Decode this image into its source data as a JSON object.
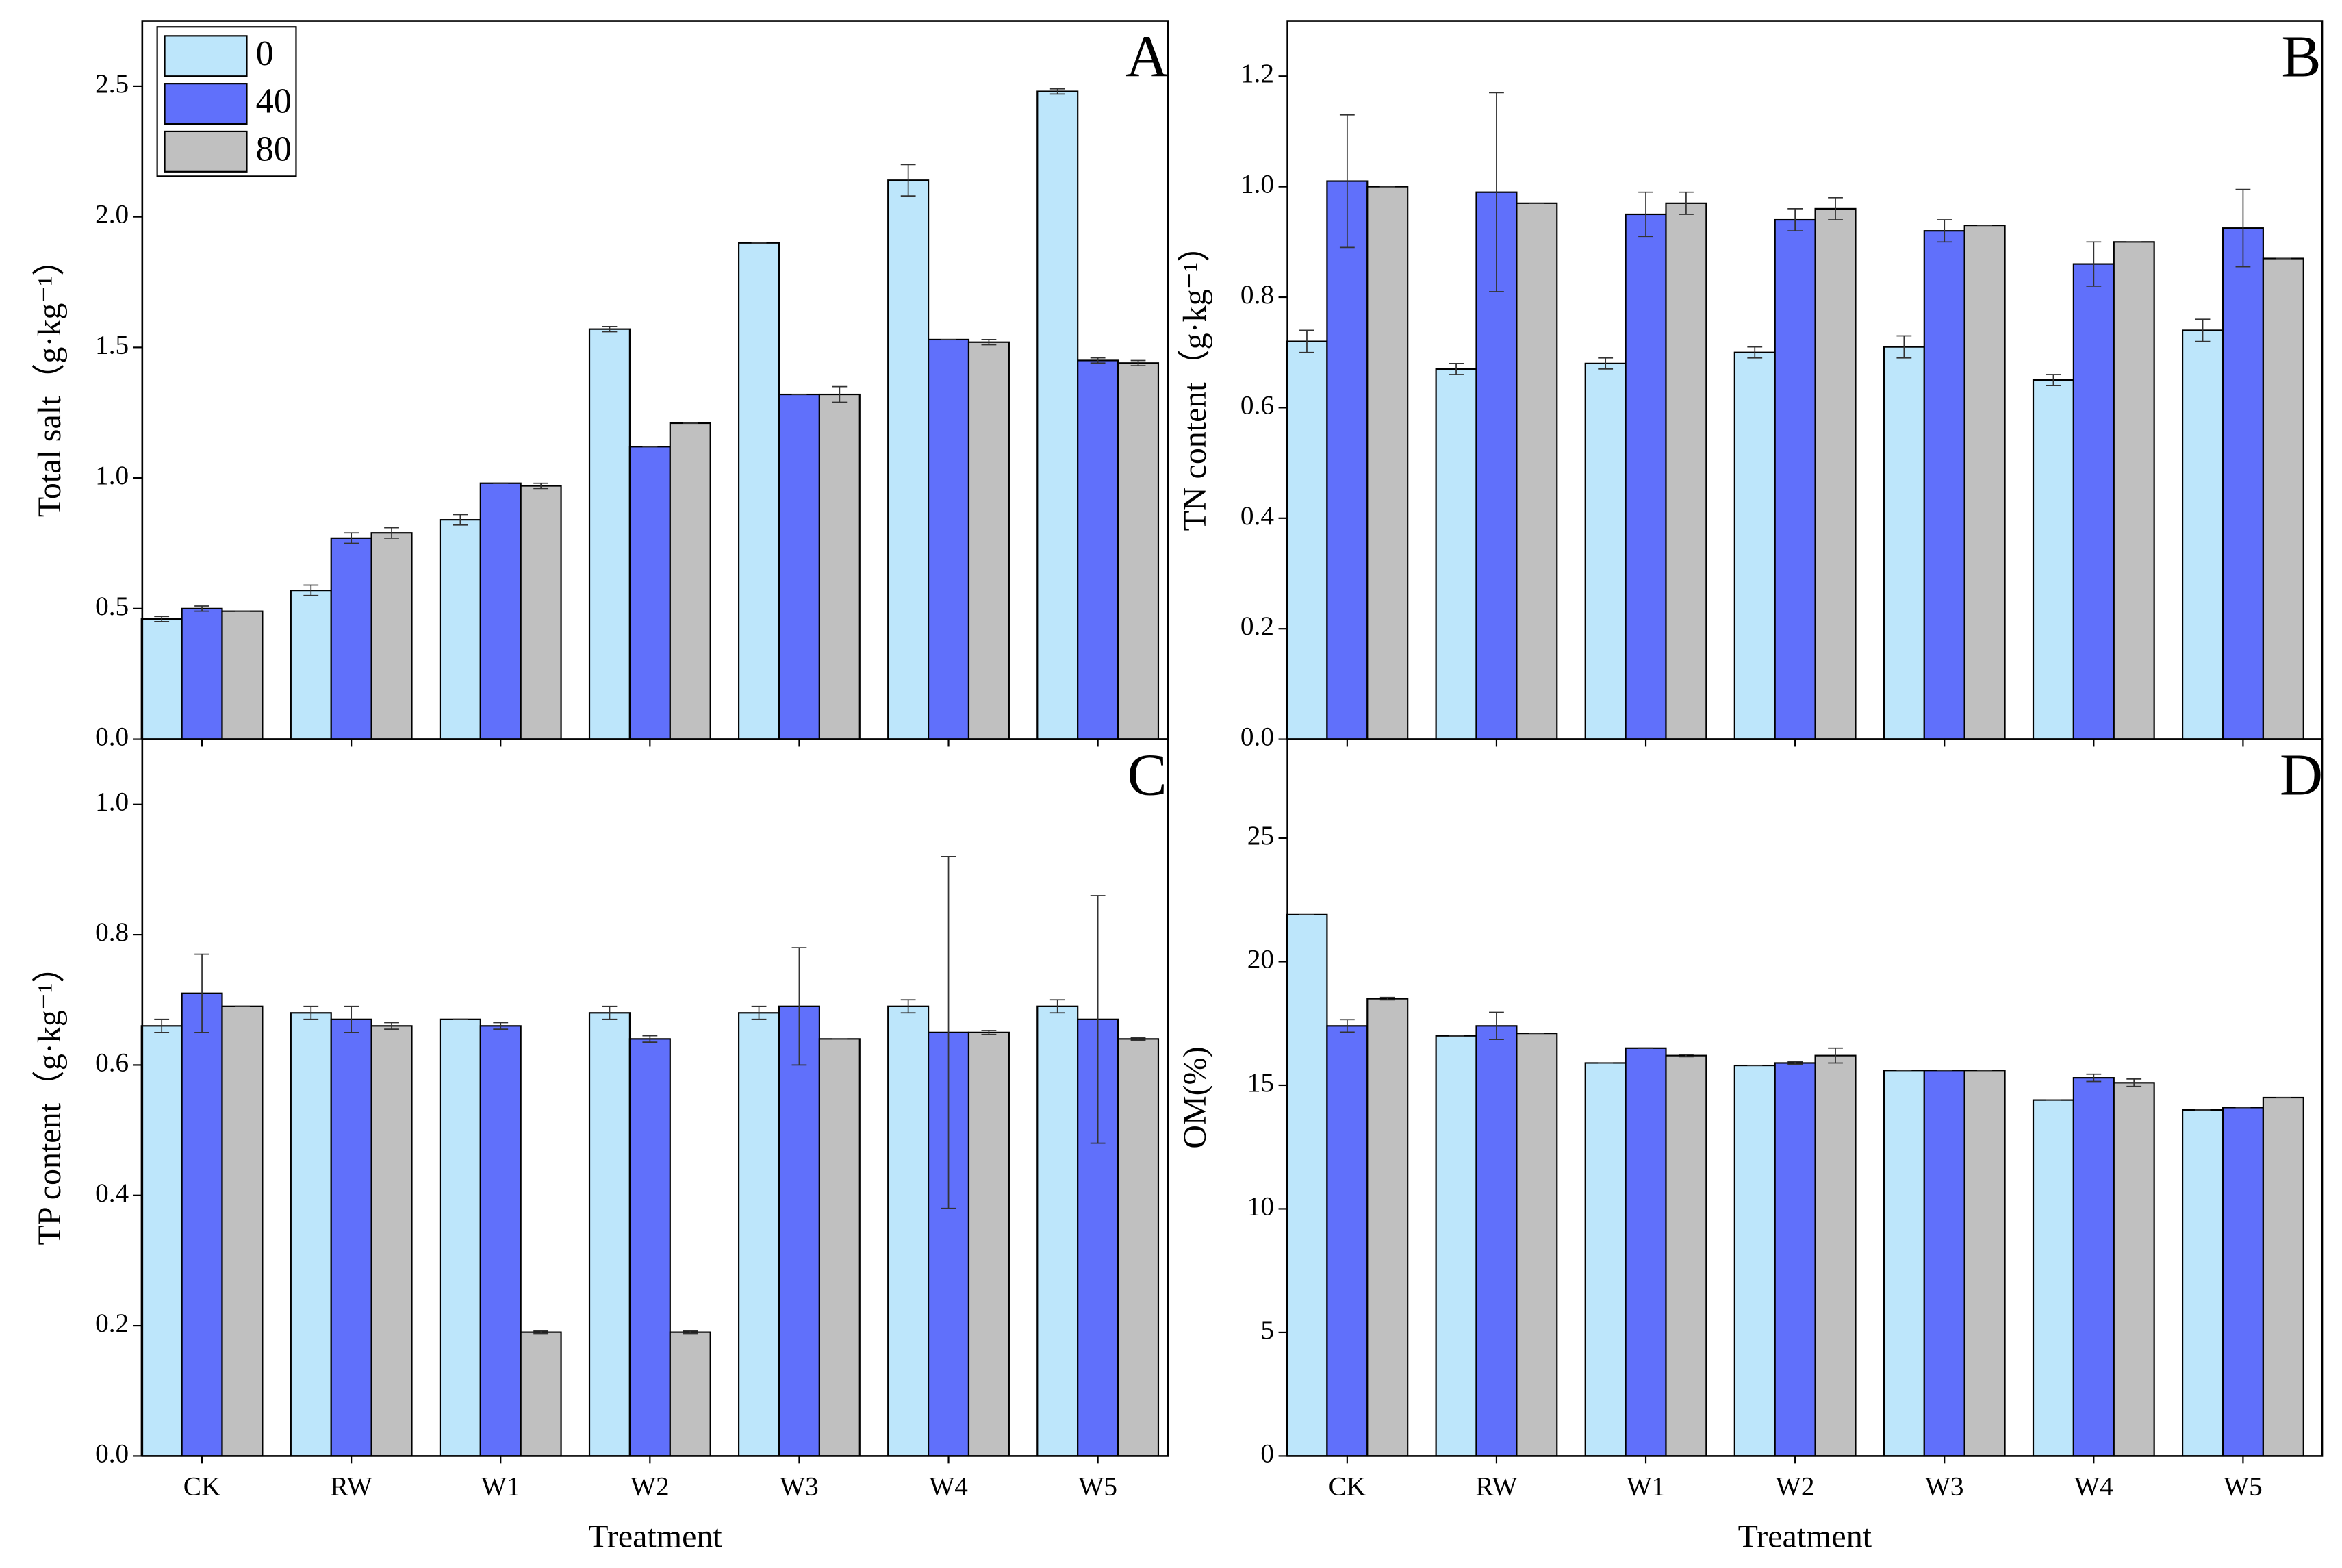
{
  "chart_data": [
    {
      "type": "bar",
      "panel_label": "A",
      "ylabel": "Total salt（g·kg⁻¹）",
      "categories": [
        null,
        null,
        null,
        null,
        null,
        null,
        null
      ],
      "series": [
        {
          "name": "0",
          "color": "#bde6fb",
          "values": [
            0.46,
            0.57,
            0.84,
            1.57,
            1.9,
            2.14,
            2.48
          ],
          "errors": [
            0.01,
            0.02,
            0.02,
            0.01,
            0,
            0.06,
            0.01
          ]
        },
        {
          "name": "40",
          "color": "#6070fb",
          "values": [
            0.5,
            0.77,
            0.98,
            1.12,
            1.32,
            1.53,
            1.45
          ],
          "errors": [
            0.01,
            0.02,
            0,
            0,
            0,
            0,
            0.01
          ]
        },
        {
          "name": "80",
          "color": "#c0c0c0",
          "values": [
            0.49,
            0.79,
            0.97,
            1.21,
            1.32,
            1.52,
            1.44
          ],
          "errors": [
            0,
            0.02,
            0.01,
            0,
            0.03,
            0.01,
            0.01
          ]
        }
      ],
      "ylim": [
        0,
        2.75
      ],
      "yticks": [
        {
          "value": 0,
          "label": "0.0"
        },
        0.5,
        {
          "value": 1,
          "label": "1.0"
        },
        1.5,
        {
          "value": 2,
          "label": "2.0"
        },
        2.5
      ],
      "legend": "upper left"
    },
    {
      "type": "bar",
      "panel_label": "B",
      "ylabel": "TN content（g·kg⁻¹）",
      "categories": [
        null,
        null,
        null,
        null,
        null,
        null,
        null
      ],
      "series": [
        {
          "color": "#bde6fb",
          "values": [
            0.72,
            0.67,
            0.68,
            0.7,
            0.71,
            0.65,
            0.74
          ],
          "errors": [
            0.02,
            0.01,
            0.01,
            0.01,
            0.02,
            0.01,
            0.02
          ]
        },
        {
          "color": "#6070fb",
          "values": [
            1.01,
            0.99,
            0.95,
            0.94,
            0.92,
            0.86,
            0.925
          ],
          "errors": [
            0.12,
            0.18,
            0.04,
            0.02,
            0.02,
            0.04,
            0.07
          ]
        },
        {
          "color": "#c0c0c0",
          "values": [
            1.0,
            0.97,
            0.97,
            0.96,
            0.93,
            0.9,
            0.87
          ],
          "errors": [
            0,
            0,
            0.02,
            0.02,
            0,
            0,
            0
          ]
        }
      ],
      "ylim": [
        0,
        1.3
      ],
      "yticks": [
        {
          "value": 0,
          "label": "0.0"
        },
        0.2,
        0.4,
        0.6,
        0.8,
        {
          "value": 1,
          "label": "1.0"
        },
        1.2
      ]
    },
    {
      "type": "bar",
      "panel_label": "C",
      "ylabel": "TP content（g·kg⁻¹）",
      "xlabel": "Treatment",
      "categories": [
        "CK",
        "RW",
        "W1",
        "W2",
        "W3",
        "W4",
        "W5"
      ],
      "series": [
        {
          "color": "#bde6fb",
          "values": [
            0.66,
            0.68,
            0.67,
            0.68,
            0.68,
            0.69,
            0.69
          ],
          "errors": [
            0.01,
            0.01,
            0,
            0.01,
            0.01,
            0.01,
            0.01
          ]
        },
        {
          "color": "#6070fb",
          "values": [
            0.71,
            0.67,
            0.66,
            0.64,
            0.69,
            0.65,
            0.67
          ],
          "errors": [
            0.06,
            0.02,
            0.005,
            0.005,
            0.09,
            0.27,
            0.19
          ]
        },
        {
          "color": "#c0c0c0",
          "values": [
            0.69,
            0.66,
            0.19,
            0.19,
            0.64,
            0.65,
            0.64
          ],
          "errors": [
            0,
            0.005,
            0.002,
            0.002,
            0,
            0.003,
            0.002
          ]
        }
      ],
      "ylim": [
        0,
        1.1
      ],
      "yticks": [
        {
          "value": 0,
          "label": "0.0"
        },
        0.2,
        0.4,
        0.6,
        0.8,
        {
          "value": 1,
          "label": "1.0"
        }
      ]
    },
    {
      "type": "bar",
      "panel_label": "D",
      "ylabel": "OM(%)",
      "xlabel": "Treatment",
      "categories": [
        "CK",
        "RW",
        "W1",
        "W2",
        "W3",
        "W4",
        "W5"
      ],
      "series": [
        {
          "color": "#bde6fb",
          "values": [
            21.9,
            17.0,
            15.9,
            15.8,
            15.6,
            14.4,
            14.0
          ],
          "errors": [
            0,
            0,
            0,
            0,
            0,
            0,
            0
          ]
        },
        {
          "color": "#6070fb",
          "values": [
            17.4,
            17.4,
            16.5,
            15.9,
            15.6,
            15.3,
            14.1
          ],
          "errors": [
            0.25,
            0.55,
            0,
            0.05,
            0,
            0.15,
            0
          ]
        },
        {
          "color": "#c0c0c0",
          "values": [
            18.5,
            17.1,
            16.2,
            16.2,
            15.6,
            15.1,
            14.5
          ],
          "errors": [
            0.05,
            0,
            0.05,
            0.3,
            0,
            0.15,
            0
          ]
        }
      ],
      "ylim": [
        0,
        29
      ],
      "yticks": [
        0,
        5,
        10,
        15,
        20,
        25
      ]
    }
  ]
}
